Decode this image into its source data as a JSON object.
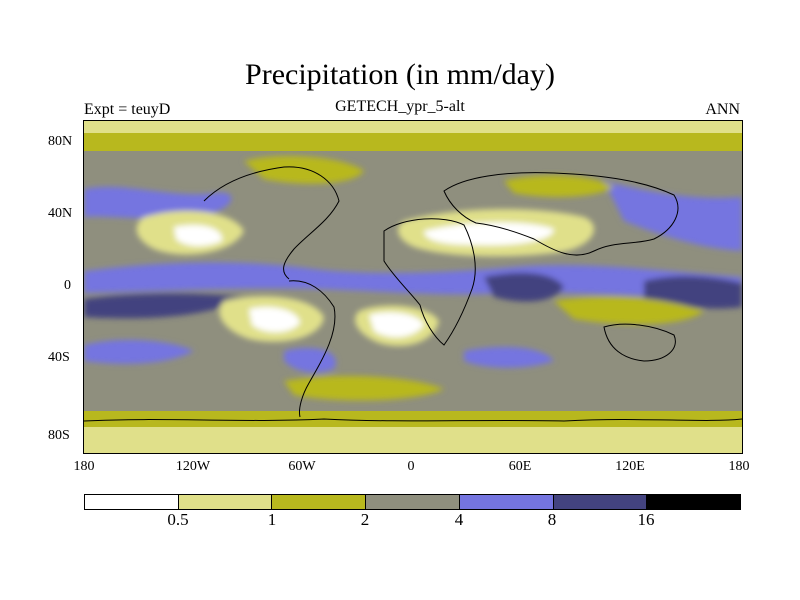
{
  "title": "Precipitation (in mm/day)",
  "subtitle": "GETECH_ypr_5-alt",
  "left_label": "Expt = teuyD",
  "right_label": "ANN",
  "y_ticks": [
    "80N",
    "40N",
    "0",
    "40S",
    "80S"
  ],
  "x_ticks": [
    "180",
    "120W",
    "60W",
    "0",
    "60E",
    "120E",
    "180"
  ],
  "colorbar": {
    "colors": [
      "#ffffff",
      "#e0e08a",
      "#b8b81e",
      "#8f8f7e",
      "#7575e0",
      "#43437f",
      "#000000"
    ],
    "labels": [
      "0.5",
      "1",
      "2",
      "4",
      "8",
      "16"
    ]
  }
}
